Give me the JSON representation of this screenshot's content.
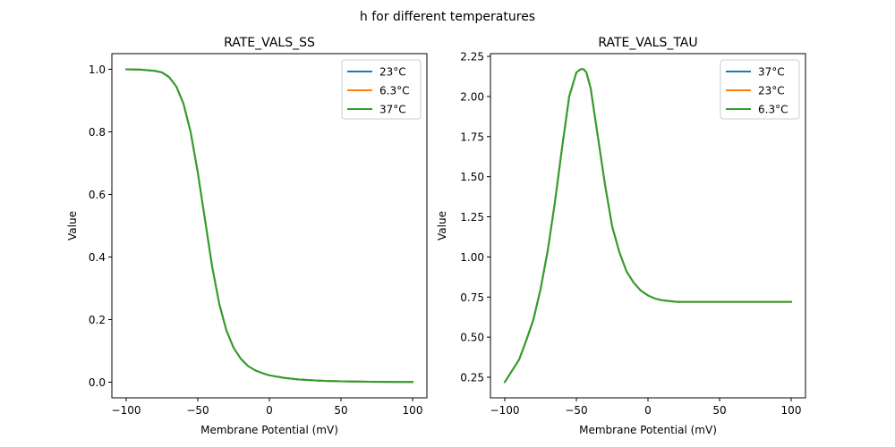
{
  "figure": {
    "suptitle": "h for different temperatures"
  },
  "chart_data": [
    {
      "type": "line",
      "title": "RATE_VALS_SS",
      "xlabel": "Membrane Potential (mV)",
      "ylabel": "Value",
      "xlim": [
        -110,
        110
      ],
      "ylim": [
        -0.05,
        1.05
      ],
      "xticks": [
        -100,
        -50,
        0,
        50,
        100
      ],
      "xtick_labels": [
        "−100",
        "−50",
        "0",
        "50",
        "100"
      ],
      "yticks": [
        0.0,
        0.2,
        0.4,
        0.6,
        0.8,
        1.0
      ],
      "ytick_labels": [
        "0.0",
        "0.2",
        "0.4",
        "0.6",
        "0.8",
        "1.0"
      ],
      "grid": false,
      "legend_position": "top-right",
      "x": [
        -100,
        -90,
        -80,
        -75,
        -70,
        -65,
        -60,
        -55,
        -50,
        -45,
        -40,
        -35,
        -30,
        -25,
        -20,
        -15,
        -10,
        -5,
        0,
        10,
        20,
        30,
        40,
        50,
        60,
        70,
        80,
        90,
        100
      ],
      "series": [
        {
          "name": "23°C",
          "color": "#1f77b4",
          "values": [
            1.0,
            0.999,
            0.995,
            0.99,
            0.975,
            0.945,
            0.89,
            0.8,
            0.67,
            0.52,
            0.37,
            0.25,
            0.165,
            0.11,
            0.075,
            0.052,
            0.038,
            0.029,
            0.022,
            0.014,
            0.009,
            0.006,
            0.004,
            0.003,
            0.002,
            0.0015,
            0.001,
            0.0008,
            0.0006
          ]
        },
        {
          "name": "6.3°C",
          "color": "#ff7f0e",
          "values": [
            1.0,
            0.999,
            0.995,
            0.99,
            0.975,
            0.945,
            0.89,
            0.8,
            0.67,
            0.52,
            0.37,
            0.25,
            0.165,
            0.11,
            0.075,
            0.052,
            0.038,
            0.029,
            0.022,
            0.014,
            0.009,
            0.006,
            0.004,
            0.003,
            0.002,
            0.0015,
            0.001,
            0.0008,
            0.0006
          ]
        },
        {
          "name": "37°C",
          "color": "#2ca02c",
          "values": [
            1.0,
            0.999,
            0.995,
            0.99,
            0.975,
            0.945,
            0.89,
            0.8,
            0.67,
            0.52,
            0.37,
            0.25,
            0.165,
            0.11,
            0.075,
            0.052,
            0.038,
            0.029,
            0.022,
            0.014,
            0.009,
            0.006,
            0.004,
            0.003,
            0.002,
            0.0015,
            0.001,
            0.0008,
            0.0006
          ]
        }
      ]
    },
    {
      "type": "line",
      "title": "RATE_VALS_TAU",
      "xlabel": "Membrane Potential (mV)",
      "ylabel": "Value",
      "xlim": [
        -110,
        110
      ],
      "ylim": [
        0.122,
        2.267
      ],
      "xticks": [
        -100,
        -50,
        0,
        50,
        100
      ],
      "xtick_labels": [
        "−100",
        "−50",
        "0",
        "50",
        "100"
      ],
      "yticks": [
        0.25,
        0.5,
        0.75,
        1.0,
        1.25,
        1.5,
        1.75,
        2.0,
        2.25
      ],
      "ytick_labels": [
        "0.25",
        "0.50",
        "0.75",
        "1.00",
        "1.25",
        "1.50",
        "1.75",
        "2.00",
        "2.25"
      ],
      "grid": false,
      "legend_position": "top-right",
      "x": [
        -100,
        -90,
        -85,
        -80,
        -75,
        -70,
        -65,
        -60,
        -55,
        -50,
        -47,
        -45,
        -43,
        -40,
        -35,
        -30,
        -25,
        -20,
        -15,
        -10,
        -5,
        0,
        5,
        10,
        15,
        20,
        30,
        50,
        75,
        100
      ],
      "series": [
        {
          "name": "37°C",
          "color": "#1f77b4",
          "values": [
            0.22,
            0.36,
            0.48,
            0.61,
            0.8,
            1.04,
            1.34,
            1.68,
            2.0,
            2.15,
            2.17,
            2.17,
            2.15,
            2.05,
            1.75,
            1.45,
            1.19,
            1.03,
            0.91,
            0.84,
            0.79,
            0.76,
            0.74,
            0.73,
            0.725,
            0.72,
            0.72,
            0.72,
            0.72,
            0.72
          ]
        },
        {
          "name": "23°C",
          "color": "#ff7f0e",
          "values": [
            0.22,
            0.36,
            0.48,
            0.61,
            0.8,
            1.04,
            1.34,
            1.68,
            2.0,
            2.15,
            2.17,
            2.17,
            2.15,
            2.05,
            1.75,
            1.45,
            1.19,
            1.03,
            0.91,
            0.84,
            0.79,
            0.76,
            0.74,
            0.73,
            0.725,
            0.72,
            0.72,
            0.72,
            0.72,
            0.72
          ]
        },
        {
          "name": "6.3°C",
          "color": "#2ca02c",
          "values": [
            0.22,
            0.36,
            0.48,
            0.61,
            0.8,
            1.04,
            1.34,
            1.68,
            2.0,
            2.15,
            2.17,
            2.17,
            2.15,
            2.05,
            1.75,
            1.45,
            1.19,
            1.03,
            0.91,
            0.84,
            0.79,
            0.76,
            0.74,
            0.73,
            0.725,
            0.72,
            0.72,
            0.72,
            0.72,
            0.72
          ]
        }
      ]
    }
  ]
}
